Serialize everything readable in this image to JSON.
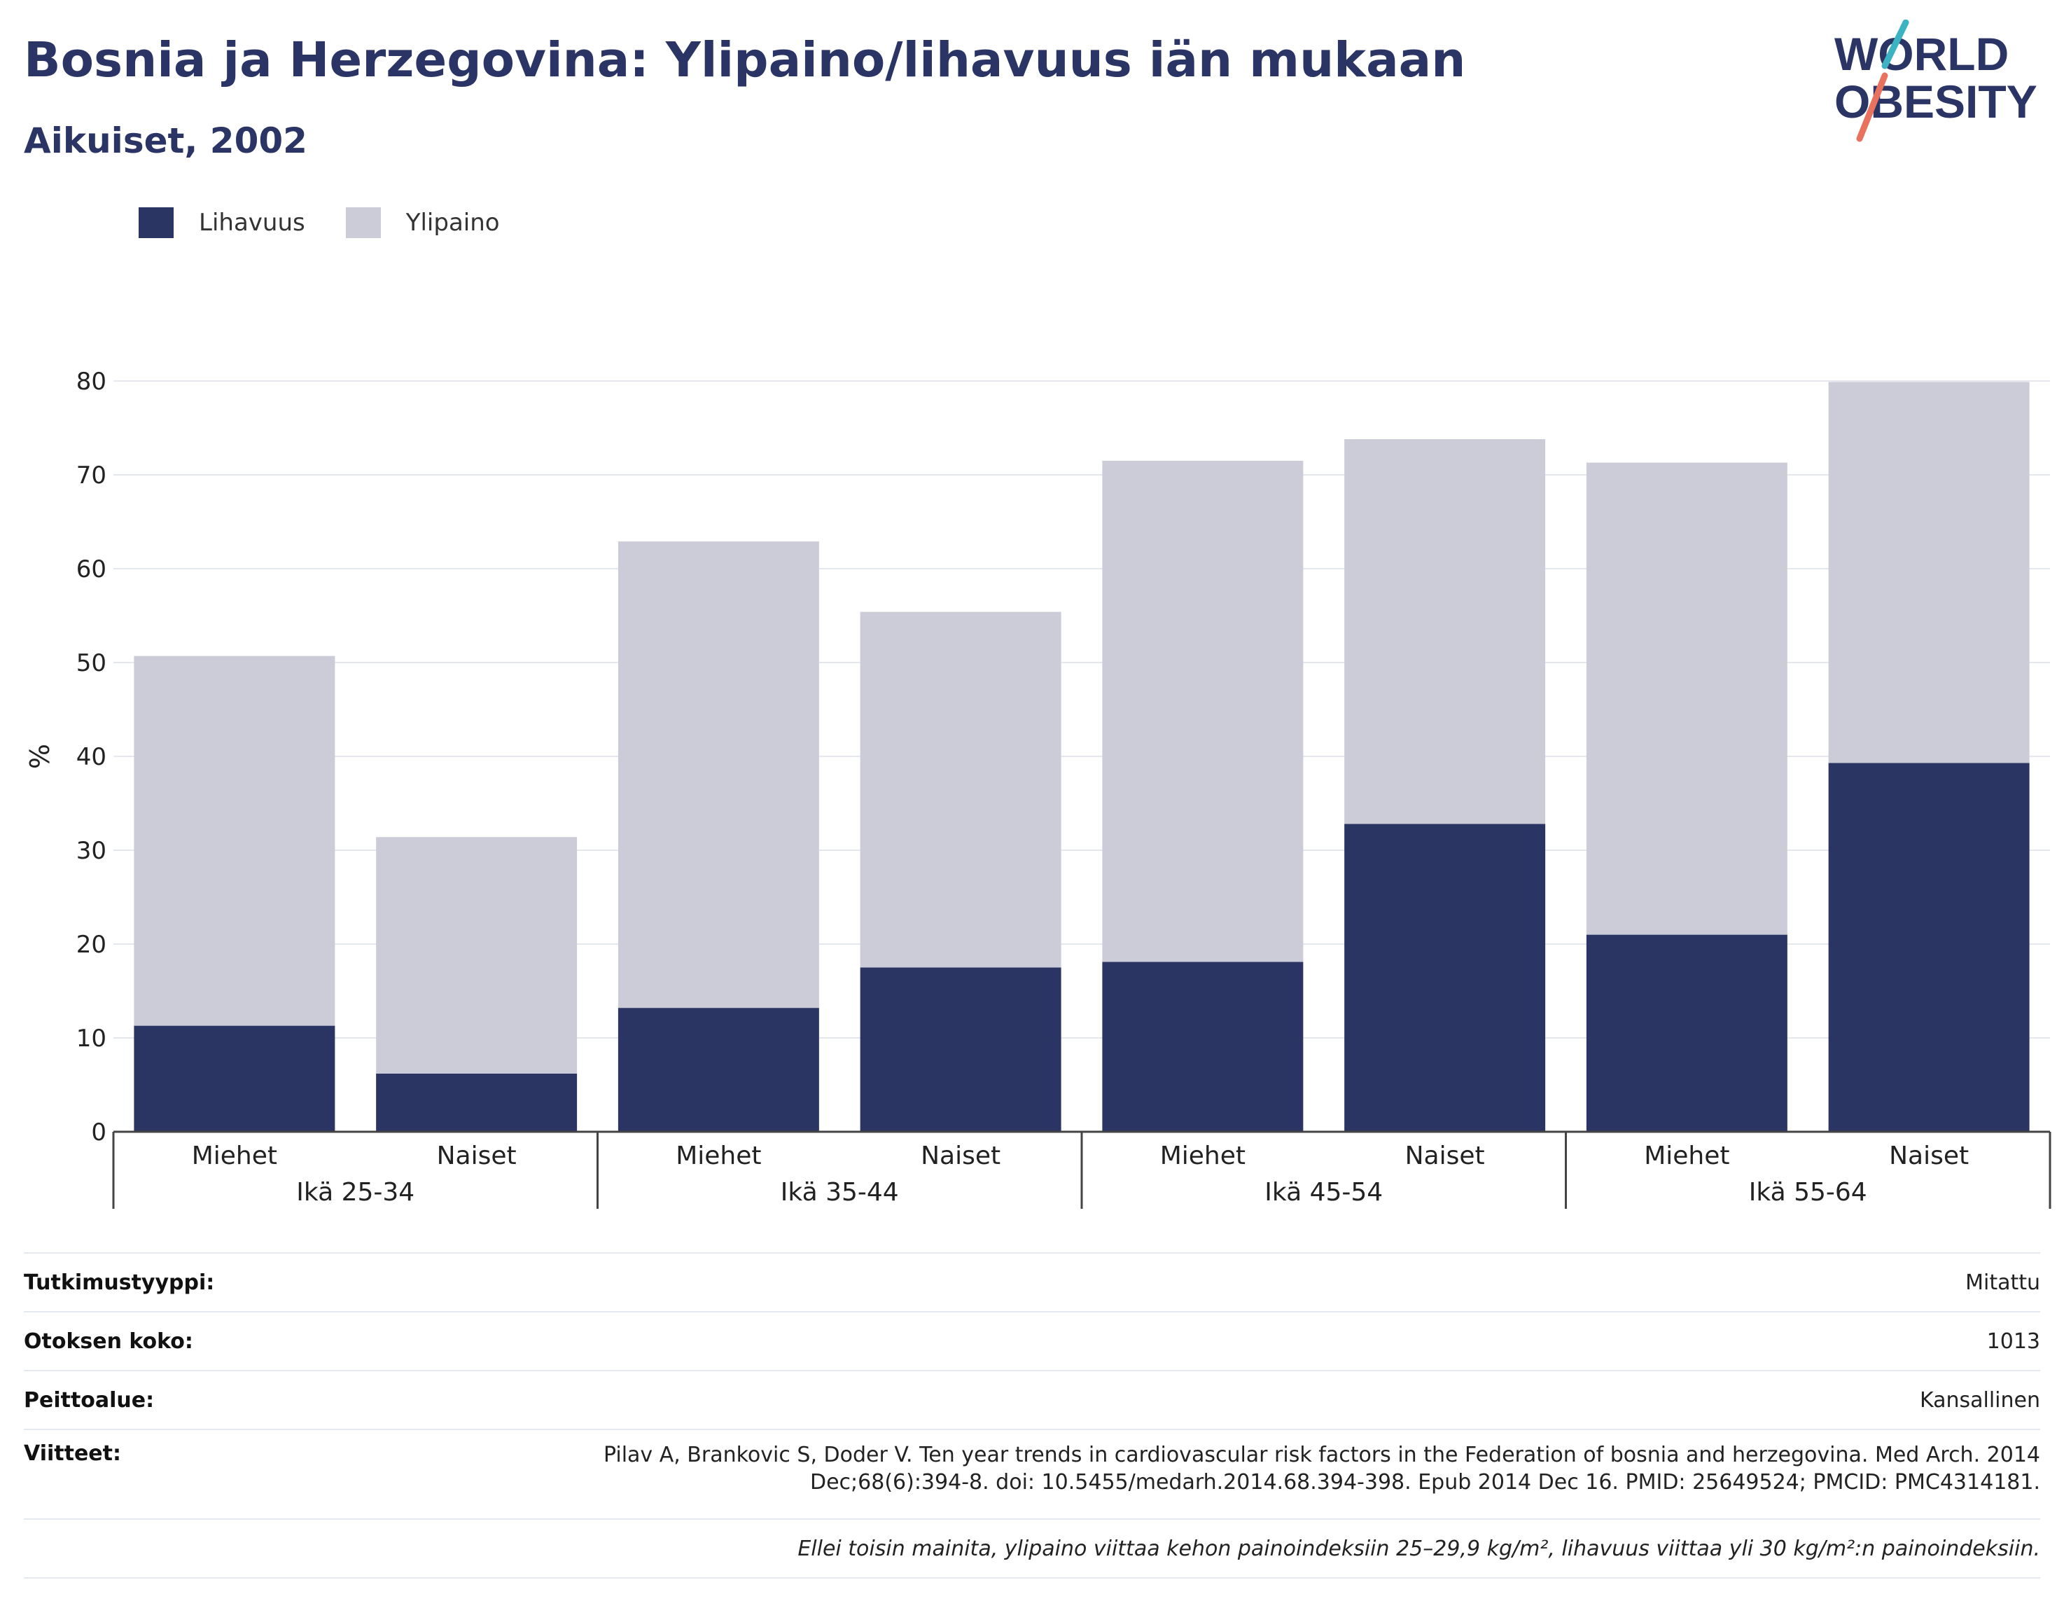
{
  "title": "Bosnia ja Herzegovina: Ylipaino/lihavuus iän mukaan",
  "subtitle": "Aikuiset, 2002",
  "logo": {
    "line1": "WORLD",
    "line2": "OBESITY"
  },
  "colors": {
    "obesity": "#2a3564",
    "overweight": "#cbccd8",
    "title": "#2b3565",
    "logo_teal": "#3bb3c3",
    "logo_coral": "#e8725e"
  },
  "chart_data": {
    "type": "bar",
    "stacked": true,
    "title": "",
    "xlabel": "",
    "ylabel": "%",
    "ylim": [
      0,
      80
    ],
    "yticks": [
      0,
      10,
      20,
      30,
      40,
      50,
      60,
      70,
      80
    ],
    "grid": true,
    "legend_position": "top-left",
    "groups": [
      "Ikä 25-34",
      "Ikä 35-44",
      "Ikä 45-54",
      "Ikä 55-64"
    ],
    "categories": [
      "Miehet",
      "Naiset",
      "Miehet",
      "Naiset",
      "Miehet",
      "Naiset",
      "Miehet",
      "Naiset"
    ],
    "series": [
      {
        "name": "Lihavuus",
        "values": [
          11.3,
          6.2,
          13.2,
          17.5,
          18.1,
          32.8,
          21.0,
          39.3
        ]
      },
      {
        "name": "Ylipaino",
        "values": [
          39.4,
          25.2,
          49.7,
          37.9,
          53.4,
          41.0,
          50.3,
          40.6
        ]
      }
    ]
  },
  "info": {
    "study_type_label": "Tutkimustyyppi:",
    "study_type": "Mitattu",
    "sample_size_label": "Otoksen koko:",
    "sample_size": "1013",
    "coverage_label": "Peittoalue:",
    "coverage": "Kansallinen",
    "references_label": "Viitteet:",
    "references": "Pilav A, Brankovic S, Doder V. Ten year trends in cardiovascular risk factors in the Federation of bosnia and herzegovina. Med Arch. 2014 Dec;68(6):394-8. doi: 10.5455/medarh.2014.68.394-398. Epub 2014 Dec 16. PMID: 25649524; PMCID: PMC4314181.",
    "footnote": "Ellei toisin mainita, ylipaino viittaa kehon painoindeksiin 25–29,9 kg/m², lihavuus viittaa yli 30 kg/m²:n painoindeksiin."
  }
}
